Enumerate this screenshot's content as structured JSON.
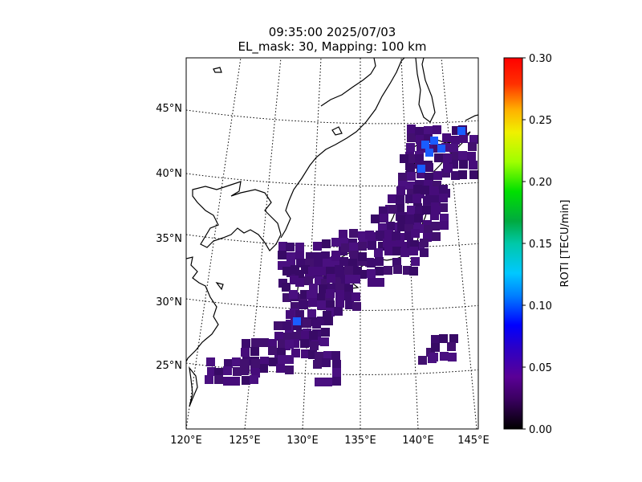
{
  "title": {
    "line1": "09:35:00 2025/07/03",
    "line2": "EL_mask: 30, Mapping: 100 km"
  },
  "map": {
    "lon_ticks": [
      "120°E",
      "125°E",
      "130°E",
      "135°E",
      "140°E",
      "145°E"
    ],
    "lat_ticks": [
      "45°N",
      "40°N",
      "35°N",
      "30°N",
      "25°N"
    ],
    "lon_range": [
      120,
      145
    ],
    "lat_range": [
      20,
      49
    ],
    "gridlines": "dotted",
    "color_ocean": "#ffffff",
    "color_coast": "#000000",
    "color_data_base": "#3d0b6e",
    "color_data_high": "#1a5cff"
  },
  "colorbar": {
    "label": "ROTI [TECU/min]",
    "ticks": [
      "0.00",
      "0.05",
      "0.10",
      "0.15",
      "0.20",
      "0.25",
      "0.30"
    ],
    "range": [
      0,
      0.3
    ],
    "colormap": "nipy_spectral-like"
  }
}
